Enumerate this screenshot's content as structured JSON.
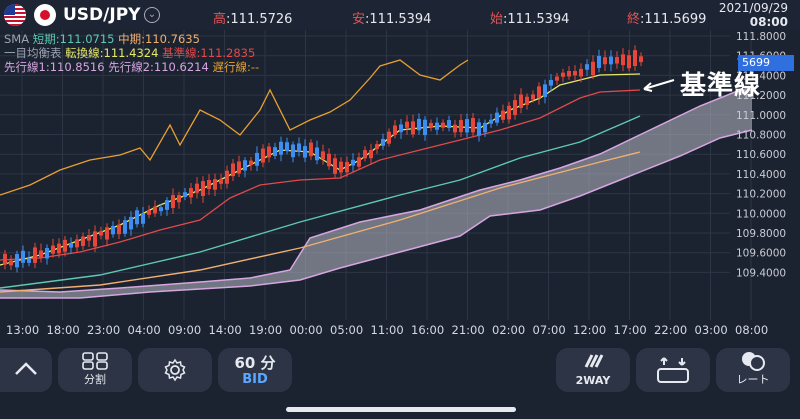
{
  "header": {
    "pair": "USD/JPY",
    "high_label": "高",
    "high_value": ":111.5726",
    "low_label": "安",
    "low_value": ":111.5394",
    "open_label": "始",
    "open_value": ":111.5394",
    "close_label": "終",
    "close_value": ":111.5699",
    "date": "2021/09/29",
    "time": "08:00"
  },
  "indicators": {
    "sma": "SMA",
    "sma_short": "短期:111.0715",
    "sma_mid": "中期:110.7635",
    "ichimoku": "一目均衡表",
    "tenkan": "転換線:111.4324",
    "kijun": "基準線:111.2835",
    "senko1": "先行線1:110.8516",
    "senko2": "先行線2:110.6214",
    "chikou": "遅行線:--"
  },
  "colors": {
    "up": "#e5483a",
    "down": "#3d8ef0",
    "tenkan": "#e6e86a",
    "kijun": "#e04a4a",
    "sma_short": "#5ec9b0",
    "sma_mid": "#f0b070",
    "chikou": "#e8a030",
    "cloud": "#b9b9c6",
    "cloud_edge": "#d6a6e0"
  },
  "y_axis": [
    "111.8000",
    "111.6000",
    "111.4000",
    "111.2000",
    "111.0000",
    "110.8000",
    "110.6000",
    "110.4000",
    "110.2000",
    "110.0000",
    "109.8000",
    "109.6000",
    "109.4000"
  ],
  "x_axis": [
    "13:00",
    "18:00",
    "23:00",
    "04:00",
    "09:00",
    "14:00",
    "19:00",
    "00:00",
    "05:00",
    "11:00",
    "16:00",
    "21:00",
    "02:00",
    "07:00",
    "12:00",
    "17:00",
    "22:00",
    "03:00",
    "08:00"
  ],
  "price_tag": "5699",
  "annotation": "基準線",
  "toolbar": {
    "up_icon": "chevron-up-icon",
    "split_label": "分割",
    "settings_icon": "gear-icon",
    "interval_label": "60 分",
    "bid_label": "BID",
    "twoway_label": "2WAY",
    "swap_icon": "layout-swap-icon",
    "rate_label": "レート"
  }
}
